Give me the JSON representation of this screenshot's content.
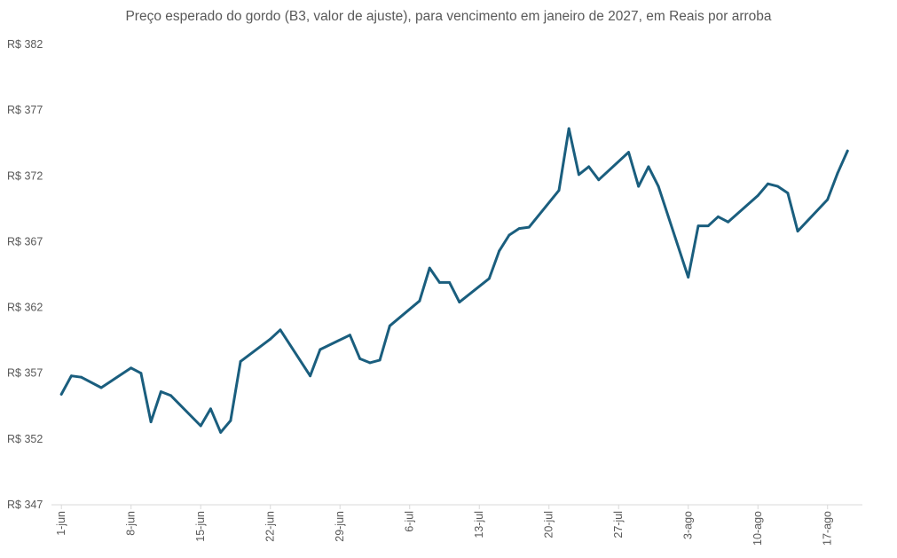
{
  "chart_data": {
    "type": "line",
    "title": "Preço esperado do gordo (B3, valor de ajuste), para vencimento em janeiro de 2027, em Reais por arroba",
    "xlabel": "",
    "ylabel": "",
    "ylim": [
      347,
      382
    ],
    "y_ticks": [
      347,
      352,
      357,
      362,
      367,
      372,
      377,
      382
    ],
    "y_tick_prefix": "R$ ",
    "grid": false,
    "line_color": "#1a5e7e",
    "x_ticks": [
      {
        "day": 1,
        "label": "1-jun"
      },
      {
        "day": 8,
        "label": "8-jun"
      },
      {
        "day": 15,
        "label": "15-jun"
      },
      {
        "day": 22,
        "label": "22-jun"
      },
      {
        "day": 29,
        "label": "29-jun"
      },
      {
        "day": 36,
        "label": "6-jul"
      },
      {
        "day": 43,
        "label": "13-jul"
      },
      {
        "day": 50,
        "label": "20-jul"
      },
      {
        "day": 57,
        "label": "27-jul"
      },
      {
        "day": 64,
        "label": "3-ago"
      },
      {
        "day": 71,
        "label": "10-ago"
      },
      {
        "day": 78,
        "label": "17-ago"
      }
    ],
    "series": [
      {
        "points": [
          [
            1,
            355.4
          ],
          [
            2,
            356.8
          ],
          [
            3,
            356.7
          ],
          [
            5,
            355.9
          ],
          [
            8,
            357.4
          ],
          [
            9,
            357.0
          ],
          [
            10,
            353.3
          ],
          [
            11,
            355.6
          ],
          [
            12,
            355.3
          ],
          [
            15,
            353.0
          ],
          [
            16,
            354.3
          ],
          [
            17,
            352.5
          ],
          [
            18,
            353.4
          ],
          [
            19,
            357.9
          ],
          [
            22,
            359.6
          ],
          [
            23,
            360.3
          ],
          [
            26,
            356.8
          ],
          [
            27,
            358.8
          ],
          [
            30,
            359.9
          ],
          [
            31,
            358.1
          ],
          [
            32,
            357.8
          ],
          [
            33,
            358.0
          ],
          [
            34,
            360.6
          ],
          [
            37,
            362.5
          ],
          [
            38,
            365.0
          ],
          [
            39,
            363.9
          ],
          [
            40,
            363.9
          ],
          [
            41,
            362.4
          ],
          [
            44,
            364.2
          ],
          [
            45,
            366.3
          ],
          [
            46,
            367.5
          ],
          [
            47,
            368.0
          ],
          [
            48,
            368.1
          ],
          [
            51,
            370.9
          ],
          [
            52,
            375.6
          ],
          [
            53,
            372.1
          ],
          [
            54,
            372.7
          ],
          [
            55,
            371.7
          ],
          [
            58,
            373.8
          ],
          [
            59,
            371.2
          ],
          [
            60,
            372.7
          ],
          [
            61,
            371.2
          ],
          [
            64,
            364.3
          ],
          [
            65,
            368.2
          ],
          [
            66,
            368.2
          ],
          [
            67,
            368.9
          ],
          [
            68,
            368.5
          ],
          [
            71,
            370.5
          ],
          [
            72,
            371.4
          ],
          [
            73,
            371.2
          ],
          [
            74,
            370.7
          ],
          [
            75,
            367.8
          ],
          [
            78,
            370.2
          ],
          [
            79,
            372.2
          ],
          [
            80,
            373.9
          ]
        ]
      }
    ]
  }
}
